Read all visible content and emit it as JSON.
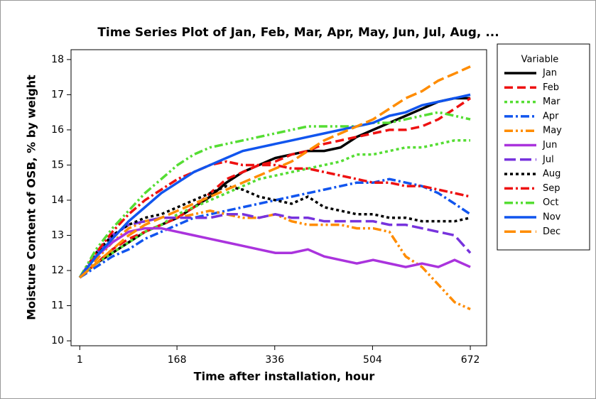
{
  "chart_data": {
    "type": "line",
    "title": "Time Series Plot of Jan, Feb, Mar, Apr, May, Jun, Jul, Aug, ...",
    "x_label": "Time after installation, hour",
    "y_label": "Moisture Content of OSB, % by weight",
    "legend_title": "Variable",
    "legend": "right",
    "x": [
      1,
      29,
      57,
      85,
      113,
      141,
      169,
      197,
      225,
      253,
      281,
      309,
      337,
      365,
      393,
      421,
      449,
      477,
      505,
      533,
      561,
      589,
      617,
      645,
      672
    ],
    "xlim": [
      -14,
      700
    ],
    "xticks": [
      1,
      168,
      336,
      504,
      672
    ],
    "ylim": [
      9.86,
      18.28
    ],
    "yticks": [
      10,
      11,
      12,
      13,
      14,
      15,
      16,
      17,
      18
    ],
    "series": [
      {
        "name": "Jan",
        "color": "#000000",
        "style": "solid",
        "values": [
          11.8,
          12.2,
          12.5,
          12.8,
          13.1,
          13.3,
          13.5,
          13.8,
          14.1,
          14.5,
          14.8,
          15.0,
          15.2,
          15.3,
          15.4,
          15.4,
          15.5,
          15.8,
          16.0,
          16.2,
          16.4,
          16.6,
          16.8,
          16.9,
          16.9
        ]
      },
      {
        "name": "Feb",
        "color": "#ee1111",
        "style": "dashed",
        "values": [
          11.8,
          12.2,
          12.6,
          12.9,
          13.1,
          13.3,
          13.5,
          13.8,
          14.2,
          14.6,
          14.8,
          15.0,
          15.1,
          15.3,
          15.4,
          15.6,
          15.7,
          15.8,
          15.9,
          16.0,
          16.0,
          16.1,
          16.3,
          16.6,
          16.9
        ]
      },
      {
        "name": "Mar",
        "color": "#55dd33",
        "style": "dotted",
        "values": [
          11.8,
          12.2,
          12.5,
          12.8,
          13.1,
          13.3,
          13.6,
          13.8,
          14.0,
          14.2,
          14.4,
          14.6,
          14.7,
          14.8,
          14.9,
          15.0,
          15.1,
          15.3,
          15.3,
          15.4,
          15.5,
          15.5,
          15.6,
          15.7,
          15.7
        ]
      },
      {
        "name": "Apr",
        "color": "#1155ee",
        "style": "dashdot",
        "values": [
          11.8,
          12.1,
          12.4,
          12.6,
          12.9,
          13.1,
          13.3,
          13.5,
          13.6,
          13.7,
          13.8,
          13.9,
          14.0,
          14.1,
          14.2,
          14.3,
          14.4,
          14.5,
          14.5,
          14.6,
          14.5,
          14.4,
          14.2,
          13.9,
          13.6
        ]
      },
      {
        "name": "May",
        "color": "#ff8c00",
        "style": "dashdotdot",
        "values": [
          11.8,
          12.3,
          12.8,
          13.2,
          13.4,
          13.5,
          13.5,
          13.6,
          13.7,
          13.6,
          13.5,
          13.5,
          13.6,
          13.4,
          13.3,
          13.3,
          13.3,
          13.2,
          13.2,
          13.1,
          12.4,
          12.1,
          11.6,
          11.1,
          10.9
        ]
      },
      {
        "name": "Jun",
        "color": "#aa33dd",
        "style": "solid",
        "values": [
          11.8,
          12.4,
          12.8,
          13.1,
          13.2,
          13.2,
          13.1,
          13.0,
          12.9,
          12.8,
          12.7,
          12.6,
          12.5,
          12.5,
          12.6,
          12.4,
          12.3,
          12.2,
          12.3,
          12.2,
          12.1,
          12.2,
          12.1,
          12.3,
          12.1
        ]
      },
      {
        "name": "Jul",
        "color": "#7733dd",
        "style": "longdash",
        "values": [
          11.8,
          12.5,
          13.0,
          13.3,
          13.4,
          13.5,
          13.5,
          13.5,
          13.5,
          13.6,
          13.6,
          13.5,
          13.6,
          13.5,
          13.5,
          13.4,
          13.4,
          13.4,
          13.4,
          13.3,
          13.3,
          13.2,
          13.1,
          13.0,
          12.5
        ]
      },
      {
        "name": "Aug",
        "color": "#000000",
        "style": "dotted",
        "values": [
          11.8,
          12.5,
          13.0,
          13.3,
          13.5,
          13.6,
          13.8,
          14.0,
          14.2,
          14.4,
          14.3,
          14.1,
          14.0,
          13.9,
          14.1,
          13.8,
          13.7,
          13.6,
          13.6,
          13.5,
          13.5,
          13.4,
          13.4,
          13.4,
          13.5
        ]
      },
      {
        "name": "Sep",
        "color": "#ee1111",
        "style": "dashdot",
        "values": [
          11.8,
          12.5,
          13.1,
          13.6,
          14.0,
          14.3,
          14.6,
          14.8,
          15.0,
          15.1,
          15.0,
          15.0,
          15.0,
          14.9,
          14.9,
          14.8,
          14.7,
          14.6,
          14.5,
          14.5,
          14.4,
          14.4,
          14.3,
          14.2,
          14.1
        ]
      },
      {
        "name": "Oct",
        "color": "#55dd33",
        "style": "dashdotdot",
        "values": [
          11.8,
          12.6,
          13.2,
          13.7,
          14.2,
          14.6,
          15.0,
          15.3,
          15.5,
          15.6,
          15.7,
          15.8,
          15.9,
          16.0,
          16.1,
          16.1,
          16.1,
          16.1,
          16.2,
          16.2,
          16.3,
          16.4,
          16.5,
          16.4,
          16.3
        ]
      },
      {
        "name": "Nov",
        "color": "#1155ee",
        "style": "solid",
        "values": [
          11.8,
          12.4,
          12.9,
          13.4,
          13.8,
          14.2,
          14.5,
          14.8,
          15.0,
          15.2,
          15.4,
          15.5,
          15.6,
          15.7,
          15.8,
          15.9,
          16.0,
          16.1,
          16.2,
          16.4,
          16.5,
          16.7,
          16.8,
          16.9,
          17.0
        ]
      },
      {
        "name": "Dec",
        "color": "#ff8c00",
        "style": "longdash",
        "values": [
          11.8,
          12.2,
          12.6,
          13.0,
          13.3,
          13.5,
          13.7,
          13.9,
          14.1,
          14.3,
          14.5,
          14.7,
          14.9,
          15.1,
          15.4,
          15.7,
          15.9,
          16.1,
          16.3,
          16.6,
          16.9,
          17.1,
          17.4,
          17.6,
          17.8
        ]
      }
    ]
  }
}
